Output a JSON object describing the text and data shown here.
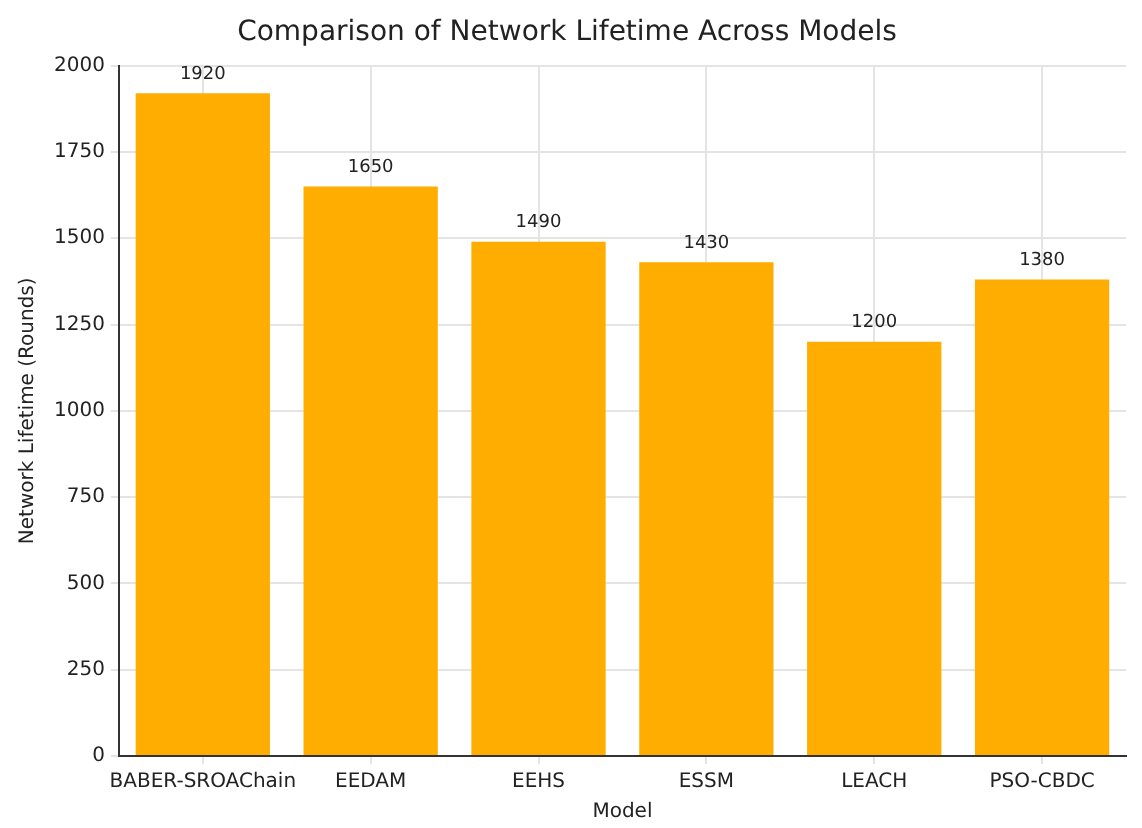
{
  "chart_data": {
    "type": "bar",
    "title": "Comparison of Network Lifetime Across Models",
    "xlabel": "Model",
    "ylabel": "Network Lifetime (Rounds)",
    "categories": [
      "BABER-SROAChain",
      "EEDAM",
      "EEHS",
      "ESSM",
      "LEACH",
      "PSO-CBDC"
    ],
    "values": [
      1920,
      1650,
      1490,
      1430,
      1200,
      1380
    ],
    "color": "#ffad00",
    "ylim": [
      0,
      2000
    ],
    "yticks": [
      0,
      250,
      500,
      750,
      1000,
      1250,
      1500,
      1750,
      2000
    ],
    "grid": true,
    "data_labels": true
  }
}
